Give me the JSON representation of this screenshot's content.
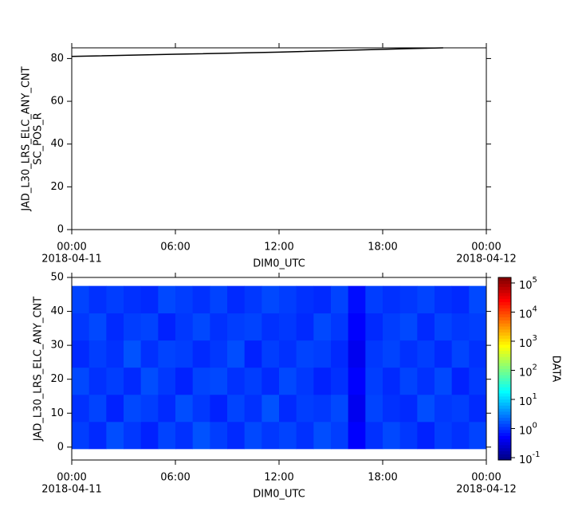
{
  "chart_data": [
    {
      "type": "line",
      "ylabel": "JAD_L30_LRS_ELC_ANY_CNT",
      "ylabel2": "SC_POS_R",
      "xlabel": "DIM0_UTC",
      "x": [
        0,
        6,
        12,
        18,
        21.5
      ],
      "series": [
        {
          "color": "#000000",
          "values": [
            81,
            82,
            83,
            84.3,
            85
          ]
        }
      ],
      "xlim": [
        0,
        24
      ],
      "xticks": [
        {
          "value": 0,
          "label": "00:00",
          "date": "2018-04-11"
        },
        {
          "value": 6,
          "label": "06:00"
        },
        {
          "value": 12,
          "label": "12:00"
        },
        {
          "value": 18,
          "label": "18:00"
        },
        {
          "value": 24,
          "label": "00:00",
          "date": "2018-04-12"
        }
      ],
      "ylim": [
        0,
        85
      ],
      "yticks": [
        0,
        20,
        40,
        60,
        80
      ]
    },
    {
      "type": "heatmap",
      "ylabel": "JAD_L30_LRS_ELC_ANY_CNT",
      "xlabel": "DIM0_UTC",
      "x": [
        0.5,
        1.5,
        2.5,
        3.5,
        4.5,
        5.5,
        6.5,
        7.5,
        8.5,
        9.5,
        10.5,
        11.5,
        12.5,
        13.5,
        14.5,
        15.5,
        16.5,
        17.5,
        18.5,
        19.5,
        20.5,
        21.5,
        22.5,
        23.5
      ],
      "y": [
        3.5,
        11.5,
        19.5,
        27.5,
        35.5,
        43.5
      ],
      "z": [
        [
          1.2,
          0.9,
          1.5,
          1.1,
          0.8,
          1.3,
          1.0,
          1.6,
          1.2,
          0.9,
          1.4,
          1.1,
          1.3,
          1.0,
          1.5,
          1.2,
          0.5,
          1.0,
          1.4,
          1.1,
          0.8,
          1.2,
          1.0,
          1.3
        ],
        [
          1.0,
          1.3,
          0.8,
          1.4,
          1.2,
          0.9,
          1.5,
          1.1,
          0.8,
          1.3,
          1.0,
          1.6,
          0.9,
          1.2,
          1.1,
          1.4,
          0.4,
          1.3,
          1.0,
          0.9,
          1.5,
          1.1,
          1.2,
          0.9
        ],
        [
          1.4,
          1.0,
          1.2,
          0.9,
          1.5,
          1.1,
          0.8,
          1.3,
          1.4,
          1.0,
          1.2,
          0.9,
          1.4,
          1.1,
          0.8,
          1.0,
          0.5,
          1.2,
          0.9,
          1.3,
          1.0,
          1.4,
          0.8,
          1.1
        ],
        [
          0.9,
          1.2,
          1.0,
          1.6,
          1.0,
          1.3,
          1.2,
          0.9,
          1.1,
          1.5,
          0.8,
          1.2,
          1.0,
          1.3,
          1.2,
          0.9,
          0.4,
          1.1,
          1.3,
          1.0,
          1.2,
          0.9,
          1.3,
          1.0
        ],
        [
          1.1,
          1.4,
          0.9,
          1.2,
          1.3,
          0.8,
          1.1,
          1.4,
          1.0,
          1.2,
          1.3,
          1.0,
          1.1,
          0.9,
          1.4,
          1.1,
          0.5,
          0.9,
          1.2,
          1.4,
          0.9,
          1.3,
          1.1,
          1.2
        ],
        [
          1.3,
          1.0,
          1.2,
          1.0,
          0.9,
          1.4,
          1.2,
          1.0,
          1.3,
          0.9,
          1.1,
          1.4,
          1.2,
          1.0,
          0.9,
          1.3,
          0.6,
          1.2,
          1.0,
          1.1,
          1.3,
          1.0,
          0.9,
          1.4
        ]
      ],
      "xlim": [
        0,
        24
      ],
      "xticks": [
        {
          "value": 0,
          "label": "00:00",
          "date": "2018-04-11"
        },
        {
          "value": 6,
          "label": "06:00"
        },
        {
          "value": 12,
          "label": "12:00"
        },
        {
          "value": 18,
          "label": "18:00"
        },
        {
          "value": 24,
          "label": "00:00",
          "date": "2018-04-12"
        }
      ],
      "ylim": [
        -3.8,
        50
      ],
      "yticks": [
        0,
        10,
        20,
        30,
        40,
        50
      ],
      "colorbar": {
        "label": "DATA",
        "scale": "log",
        "colormap": "jet",
        "lim": [
          0.083,
          155000
        ],
        "ticks": [
          {
            "value": 0.1,
            "label": "10",
            "exponent": "-1"
          },
          {
            "value": 1,
            "label": "10",
            "exponent": "0"
          },
          {
            "value": 10,
            "label": "10",
            "exponent": "1"
          },
          {
            "value": 100,
            "label": "10",
            "exponent": "2"
          },
          {
            "value": 1000,
            "label": "10",
            "exponent": "3"
          },
          {
            "value": 10000,
            "label": "10",
            "exponent": "4"
          },
          {
            "value": 100000,
            "label": "10",
            "exponent": "5"
          }
        ]
      }
    }
  ]
}
